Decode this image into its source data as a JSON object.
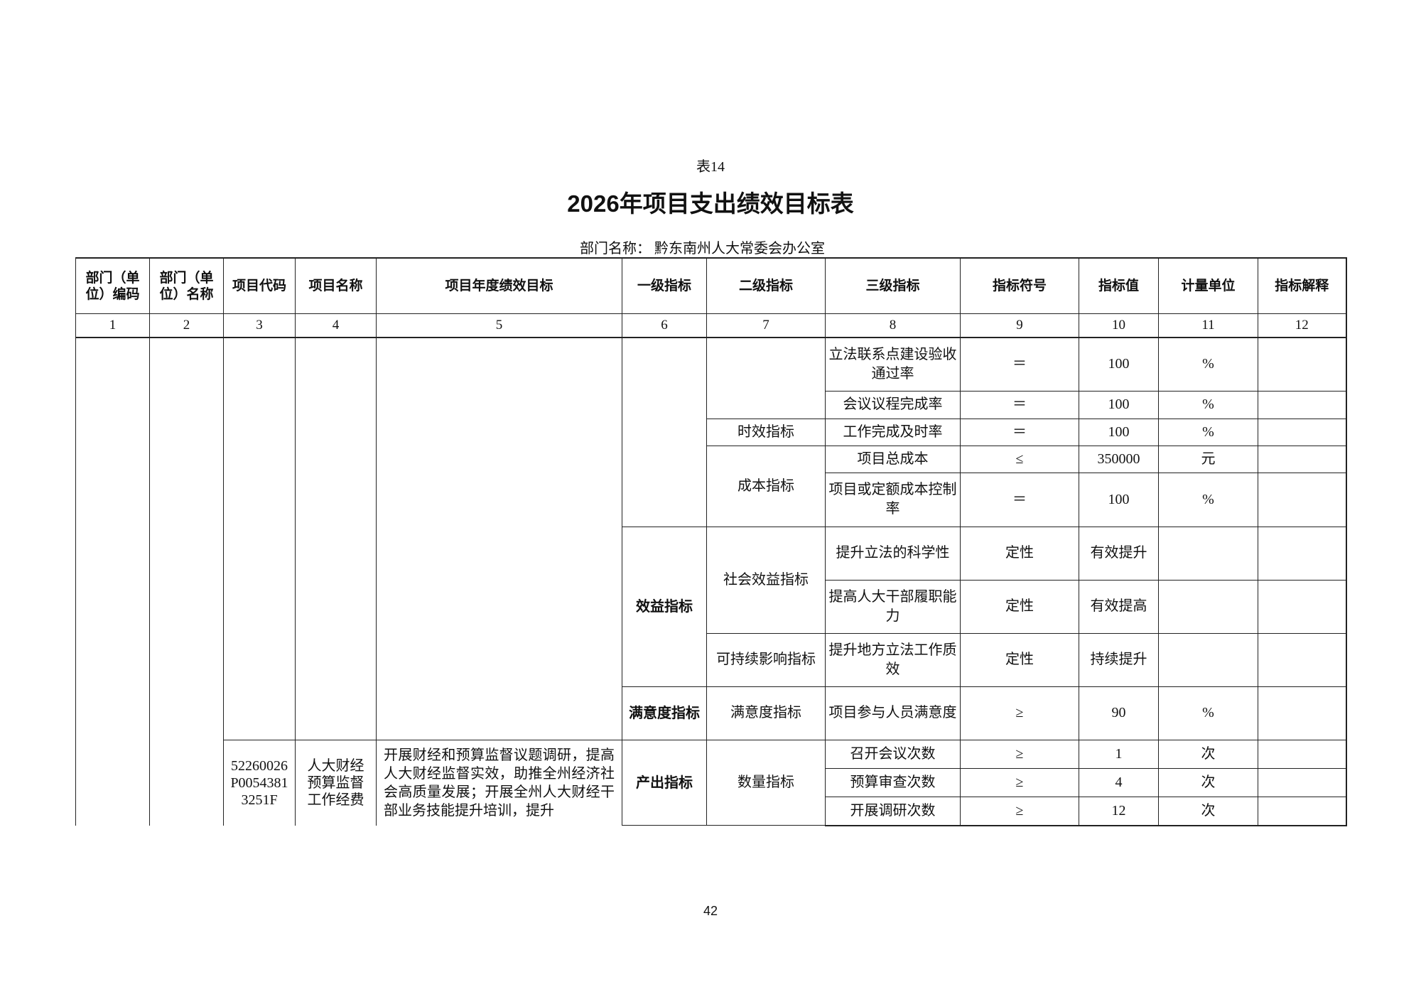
{
  "table_number": "表14",
  "title": "2026年项目支出绩效目标表",
  "department_label": "部门名称：",
  "department_name": "黔东南州人大常委会办公室",
  "headers": [
    "部门（单位）编码",
    "部门（单位）名称",
    "项目代码",
    "项目名称",
    "项目年度绩效目标",
    "一级指标",
    "二级指标",
    "三级指标",
    "指标符号",
    "指标值",
    "计量单位",
    "指标解释"
  ],
  "column_numbers": [
    "1",
    "2",
    "3",
    "4",
    "5",
    "6",
    "7",
    "8",
    "9",
    "10",
    "11",
    "12"
  ],
  "level1": {
    "benefit": "效益指标",
    "satisfaction": "满意度指标",
    "output": "产出指标"
  },
  "level2": {
    "timeliness": "时效指标",
    "cost": "成本指标",
    "social": "社会效益指标",
    "sustainable": "可持续影响指标",
    "satisfaction": "满意度指标",
    "quantity": "数量指标"
  },
  "rows": [
    {
      "l3": "立法联系点建设验收通过率",
      "sym": "＝",
      "val": "100",
      "unit": "%"
    },
    {
      "l3": "会议议程完成率",
      "sym": "＝",
      "val": "100",
      "unit": "%"
    },
    {
      "l3": "工作完成及时率",
      "sym": "＝",
      "val": "100",
      "unit": "%"
    },
    {
      "l3": "项目总成本",
      "sym": "≤",
      "val": "350000",
      "unit": "元"
    },
    {
      "l3": "项目或定额成本控制率",
      "sym": "＝",
      "val": "100",
      "unit": "%"
    },
    {
      "l3": "提升立法的科学性",
      "sym": "定性",
      "val": "有效提升",
      "unit": ""
    },
    {
      "l3": "提高人大干部履职能力",
      "sym": "定性",
      "val": "有效提高",
      "unit": ""
    },
    {
      "l3": "提升地方立法工作质效",
      "sym": "定性",
      "val": "持续提升",
      "unit": ""
    },
    {
      "l3": "项目参与人员满意度",
      "sym": "≥",
      "val": "90",
      "unit": "%"
    },
    {
      "l3": "召开会议次数",
      "sym": "≥",
      "val": "1",
      "unit": "次"
    },
    {
      "l3": "预算审查次数",
      "sym": "≥",
      "val": "4",
      "unit": "次"
    },
    {
      "l3": "开展调研次数",
      "sym": "≥",
      "val": "12",
      "unit": "次"
    }
  ],
  "project2": {
    "code": "52260026P00543813251F",
    "name": "人大财经预算监督工作经费",
    "goal": "开展财经和预算监督议题调研，提高人大财经监督实效，助推全州经济社会高质量发展；开展全州人大财经干部业务技能提升培训，提升"
  },
  "page_number": "42"
}
